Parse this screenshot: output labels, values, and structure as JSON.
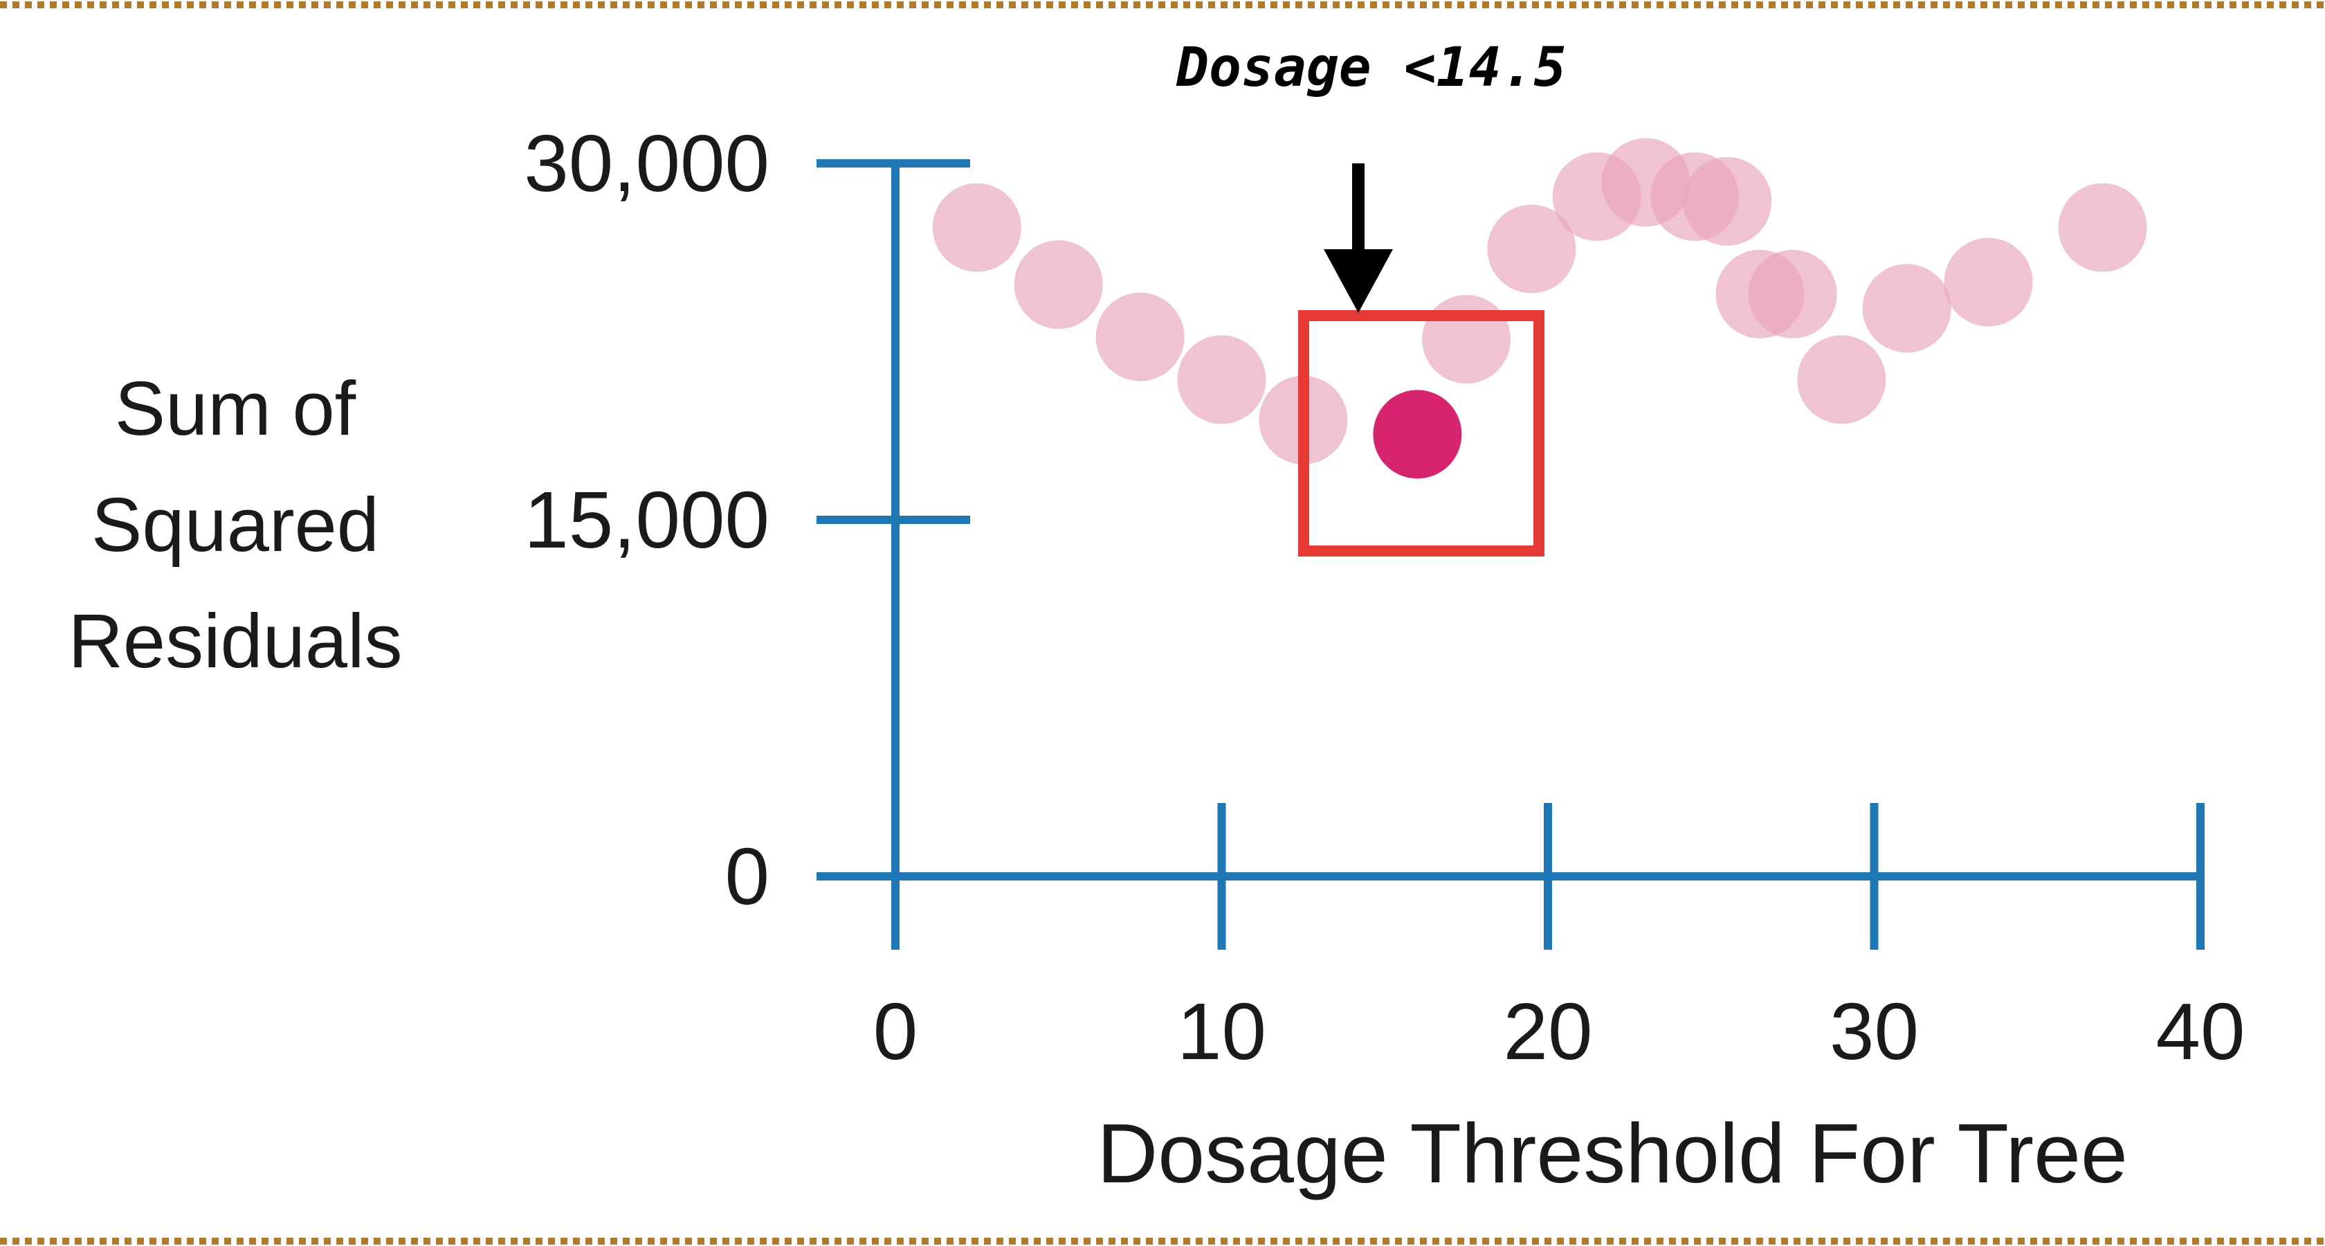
{
  "colors": {
    "axis": "#1f77b4",
    "point_faded": "#e8a3bd",
    "point_selected": "#d6246e",
    "highlight_box": "#e53935",
    "arrow": "#000000",
    "border": "#b07a2c"
  },
  "chart_data": {
    "type": "scatter",
    "xlabel": "Dosage Threshold For Tree",
    "ylabel": [
      "Sum of",
      "Squared",
      "Residuals"
    ],
    "xlim": [
      0,
      40
    ],
    "ylim": [
      0,
      30000
    ],
    "x_ticks": [
      0,
      10,
      20,
      30,
      40
    ],
    "x_tick_labels": [
      "0",
      "10",
      "20",
      "30",
      "40"
    ],
    "y_ticks": [
      0,
      15000,
      30000
    ],
    "y_tick_labels": [
      "0",
      "15,000",
      "30,000"
    ],
    "grid": false,
    "series": [
      {
        "points": [
          {
            "x": 2.5,
            "y": 27300
          },
          {
            "x": 5,
            "y": 24900
          },
          {
            "x": 7.5,
            "y": 22700
          },
          {
            "x": 10,
            "y": 20900
          },
          {
            "x": 12.5,
            "y": 19200
          },
          {
            "x": 17.5,
            "y": 22600
          },
          {
            "x": 19.5,
            "y": 26400
          },
          {
            "x": 21.5,
            "y": 28600
          },
          {
            "x": 23,
            "y": 29200
          },
          {
            "x": 24.5,
            "y": 28600
          },
          {
            "x": 25.5,
            "y": 28400
          },
          {
            "x": 26.5,
            "y": 24500
          },
          {
            "x": 27.5,
            "y": 24500
          },
          {
            "x": 29,
            "y": 20900
          },
          {
            "x": 31,
            "y": 23900
          },
          {
            "x": 33.5,
            "y": 25000
          },
          {
            "x": 37,
            "y": 27300
          }
        ]
      },
      {
        "selected": true,
        "points": [
          {
            "x": 16,
            "y": 18600
          }
        ]
      }
    ],
    "annotation": {
      "text": "Dosage <14.5",
      "target_x": 16,
      "target_y": 18600
    }
  }
}
